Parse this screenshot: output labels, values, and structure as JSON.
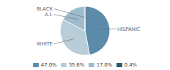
{
  "chart_data": {
    "type": "pie",
    "categories": [
      "HISPANIC",
      "WHITE",
      "A.I.",
      "BLACK"
    ],
    "values": [
      47.0,
      35.6,
      17.0,
      0.4
    ],
    "value_labels": [
      "47.0%",
      "35.6%",
      "17.0%",
      "0.4%"
    ],
    "colors": [
      "#5b8ba8",
      "#b8cdd8",
      "#9dbccc",
      "#2d5a72"
    ],
    "legend": "bottom"
  }
}
